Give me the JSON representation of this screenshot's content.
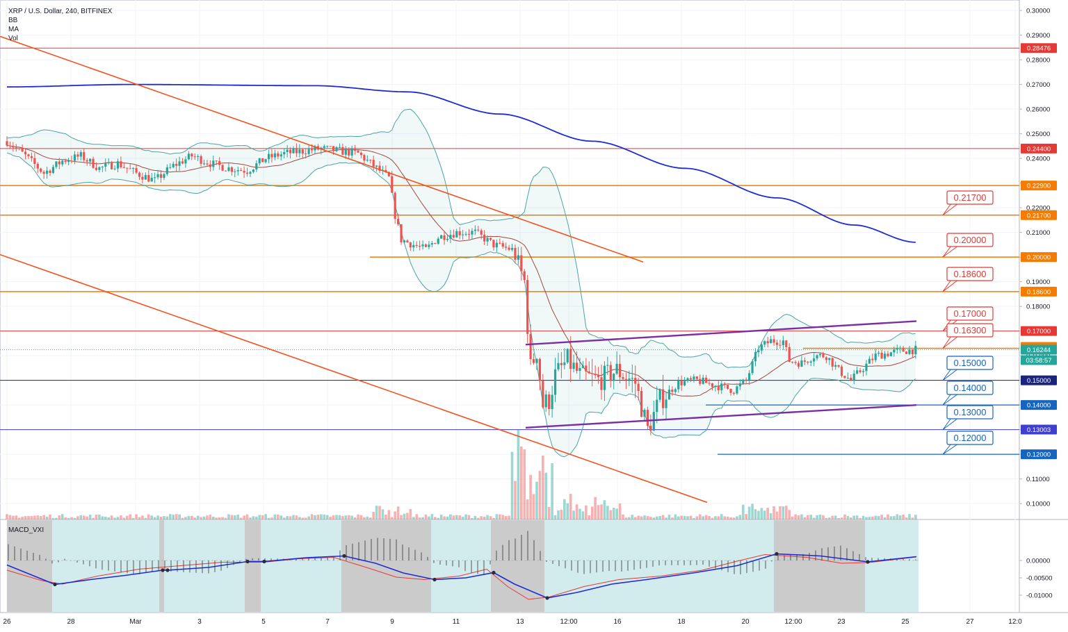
{
  "legend": {
    "title": "XRP / U.S. Dollar, 240, BITFINEX",
    "indicators": [
      "BB",
      "MA",
      "Vol"
    ]
  },
  "macd": {
    "label": "MACD_VXI"
  },
  "colors": {
    "up": "#26a69a",
    "down": "#ef5350",
    "ma200": "#1f2bd1",
    "resistance_red": "#e53935",
    "orange": "#f57c00",
    "purple": "#7b2fa3",
    "blue_level": "#1565c0",
    "navy_level": "#1a237e",
    "bb": "#4ba3a1"
  },
  "chart_data": {
    "type": "candlestick",
    "price_axis": {
      "ticks": [
        "0.30000",
        "0.29000",
        "0.28000",
        "0.27000",
        "0.26000",
        "0.25000",
        "0.24000",
        "0.23000",
        "0.22000",
        "0.21000",
        "0.20000",
        "0.19000",
        "0.18000",
        "0.17000",
        "0.16000",
        "0.15000",
        "0.14000",
        "0.13000",
        "0.12000",
        "0.11000",
        "0.10000"
      ],
      "range": [
        0.093,
        0.302
      ]
    },
    "time_axis": {
      "labels": [
        "26",
        "28",
        "Mar",
        "3",
        "5",
        "7",
        "9",
        "11",
        "13",
        "12:00",
        "16",
        "18",
        "20",
        "12:00",
        "23",
        "25",
        "27",
        "12:0"
      ]
    },
    "macd_axis": {
      "ticks": [
        "0.00000",
        "-0.00500",
        "-0.01000"
      ],
      "range": [
        -0.0122,
        0.0032
      ]
    },
    "price_labels": [
      {
        "value": "0.28476",
        "color": "#e53935"
      },
      {
        "value": "0.24400",
        "color": "#e53935"
      },
      {
        "value": "0.22900",
        "color": "#f57c00"
      },
      {
        "value": "0.21700",
        "color": "#f57c00"
      },
      {
        "value": "0.20000",
        "color": "#f57c00"
      },
      {
        "value": "0.18600",
        "color": "#f57c00"
      },
      {
        "value": "0.17000",
        "color": "#e53935"
      },
      {
        "value": "0.16300",
        "color": "#f57c00"
      },
      {
        "value": "0.16244",
        "color": "#26a69a"
      },
      {
        "value": "03:58:57",
        "color": "#26a69a"
      },
      {
        "value": "0.15000",
        "color": "#1a237e"
      },
      {
        "value": "0.14000",
        "color": "#1565c0"
      },
      {
        "value": "0.13003",
        "color": "#3f3fcf"
      },
      {
        "value": "0.12000",
        "color": "#1565c0"
      }
    ],
    "callouts": [
      {
        "text": "0.21700",
        "color": "#e53935"
      },
      {
        "text": "0.20000",
        "color": "#e53935"
      },
      {
        "text": "0.18600",
        "color": "#e53935"
      },
      {
        "text": "0.17000",
        "color": "#e53935"
      },
      {
        "text": "0.16300",
        "color": "#e53935"
      },
      {
        "text": "0.15000",
        "color": "#1565c0"
      },
      {
        "text": "0.14000",
        "color": "#1565c0"
      },
      {
        "text": "0.13000",
        "color": "#1565c0"
      },
      {
        "text": "0.12000",
        "color": "#1565c0"
      }
    ],
    "horizontal_levels": [
      0.28476,
      0.244,
      0.229,
      0.217,
      0.2,
      0.186,
      0.17,
      0.163,
      0.15,
      0.14,
      0.13,
      0.12
    ],
    "close_anchors": [
      [
        0,
        0.247
      ],
      [
        6,
        0.241
      ],
      [
        12,
        0.234
      ],
      [
        18,
        0.239
      ],
      [
        24,
        0.241
      ],
      [
        30,
        0.236
      ],
      [
        36,
        0.238
      ],
      [
        42,
        0.234
      ],
      [
        48,
        0.231
      ],
      [
        54,
        0.237
      ],
      [
        60,
        0.241
      ],
      [
        66,
        0.238
      ],
      [
        72,
        0.236
      ],
      [
        78,
        0.235
      ],
      [
        84,
        0.24
      ],
      [
        90,
        0.242
      ],
      [
        96,
        0.243
      ],
      [
        102,
        0.244
      ],
      [
        108,
        0.243
      ],
      [
        114,
        0.242
      ],
      [
        118,
        0.238
      ],
      [
        124,
        0.232
      ],
      [
        126,
        0.217
      ],
      [
        128,
        0.207
      ],
      [
        132,
        0.205
      ],
      [
        136,
        0.203
      ],
      [
        140,
        0.208
      ],
      [
        146,
        0.21
      ],
      [
        152,
        0.21
      ],
      [
        158,
        0.205
      ],
      [
        164,
        0.203
      ],
      [
        168,
        0.19
      ],
      [
        170,
        0.155
      ],
      [
        172,
        0.162
      ],
      [
        174,
        0.14
      ],
      [
        176,
        0.142
      ],
      [
        178,
        0.152
      ],
      [
        182,
        0.158
      ],
      [
        186,
        0.152
      ],
      [
        192,
        0.15
      ],
      [
        198,
        0.154
      ],
      [
        204,
        0.149
      ],
      [
        208,
        0.13
      ],
      [
        212,
        0.142
      ],
      [
        218,
        0.149
      ],
      [
        224,
        0.15
      ],
      [
        230,
        0.148
      ],
      [
        236,
        0.146
      ],
      [
        240,
        0.15
      ],
      [
        244,
        0.163
      ],
      [
        248,
        0.166
      ],
      [
        252,
        0.166
      ],
      [
        254,
        0.158
      ],
      [
        258,
        0.157
      ],
      [
        262,
        0.16
      ],
      [
        266,
        0.16
      ],
      [
        270,
        0.154
      ],
      [
        274,
        0.15
      ],
      [
        278,
        0.155
      ],
      [
        282,
        0.16
      ],
      [
        286,
        0.161
      ],
      [
        290,
        0.162
      ],
      [
        295,
        0.1624
      ]
    ],
    "bar_count": 296
  }
}
